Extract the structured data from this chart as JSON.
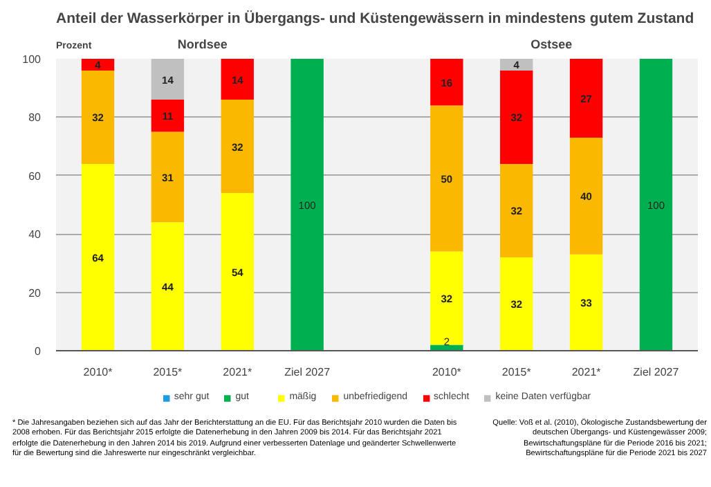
{
  "chart_data": {
    "type": "bar",
    "stacked": true,
    "title": "Anteil der Wasserkörper in Übergangs- und Küstengewässern in mindestens gutem Zustand",
    "ylabel": "Prozent",
    "categories": [
      "2010*",
      "2015*",
      "2021*",
      "Ziel 2027",
      null,
      "2010*",
      "2015*",
      "2021*",
      "Ziel 2027"
    ],
    "series": [
      {
        "name": "sehr gut",
        "color": "#1f9bde",
        "values": [
          null,
          null,
          null,
          null,
          null,
          null,
          null,
          null,
          null
        ]
      },
      {
        "name": "gut",
        "color": "#00b050",
        "values": [
          null,
          null,
          null,
          100,
          null,
          2,
          null,
          null,
          100
        ]
      },
      {
        "name": "mäßig",
        "color": "#ffff00",
        "values": [
          64,
          44,
          54,
          null,
          null,
          32,
          32,
          33,
          null
        ]
      },
      {
        "name": "unbefriedigend",
        "color": "#fbb800",
        "values": [
          32,
          31,
          32,
          null,
          null,
          50,
          32,
          40,
          null
        ]
      },
      {
        "name": "schlecht",
        "color": "#ff0000",
        "values": [
          4,
          11,
          14,
          null,
          null,
          16,
          32,
          27,
          null
        ]
      },
      {
        "name": "keine Daten verfügbar",
        "color": "#c0c0c0",
        "values": [
          null,
          14,
          null,
          null,
          null,
          null,
          4,
          null,
          null
        ]
      }
    ],
    "data_labels": true,
    "ylim": [
      0,
      100
    ],
    "yticks": [
      0,
      20,
      40,
      60,
      80,
      100
    ],
    "grid": "y",
    "legend": "bottom",
    "annotations": [
      "Nordsee",
      "Ostsee",
      "* Die Jahresangaben beziehen sich auf das Jahr der Berichterstattung an die EU. Für das Berichtsjahr 2010 wurden die Daten bis 2008 erhoben. Für das Berichtsjahr 2015 erfolgte die Datenerhebung in den Jahren 2009 bis 2014. Für das Berichtsjahr 2021 erfolgte die Datenerhebung in den Jahren 2014 bis 2019. Aufgrund einer verbesserten Datenlage und geänderter Schwellenwerte für die Bewertung sind die Jahreswerte nur eingeschränkt vergleichbar.",
      "Quelle: Voß et al. (2010), Ökologische Zustandsbewertung der deutschen Übergangs- und Küstengewässer 2009; Bewirtschaftungspläne für die Periode 2016 bis 2021; Bewirtschaftungspläne für die Periode 2021 bis 2027"
    ]
  }
}
